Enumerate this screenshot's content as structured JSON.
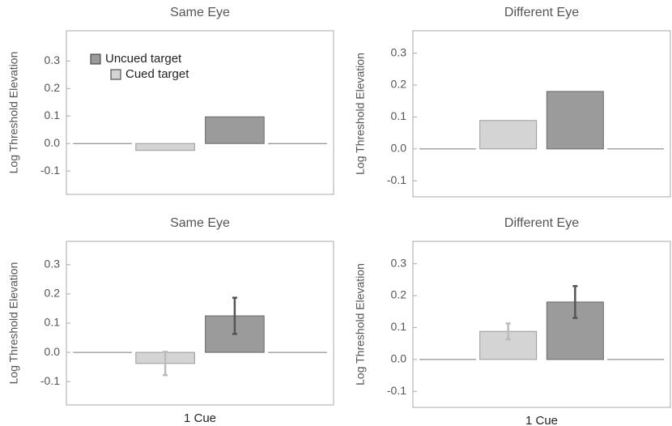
{
  "chart_data": [
    {
      "type": "bar",
      "title": "Same Eye",
      "y_label": "Log Threshold Elevation",
      "categories": [
        null
      ],
      "legend": "upper left",
      "ylim": [
        -0.185,
        0.41
      ],
      "yticks": [
        -0.1,
        {
          "value": 0,
          "label": "0.0"
        },
        0.1,
        0.2,
        0.3
      ],
      "series": [
        {
          "name": "Uncued target",
          "color": "#9b9b9b",
          "values": [
            0.097
          ]
        },
        {
          "name": "Cued target",
          "color": "#d4d4d4",
          "values": [
            -0.025
          ]
        }
      ]
    },
    {
      "type": "bar",
      "title": "Different Eye",
      "y_label": "Log Threshold Elevation",
      "categories": [
        null
      ],
      "ylim": [
        -0.15,
        0.37
      ],
      "yticks": [
        -0.1,
        {
          "value": 0,
          "label": "0.0"
        },
        0.1,
        0.2,
        0.3
      ],
      "series": [
        {
          "color": "#9b9b9b",
          "values": [
            0.18
          ]
        },
        {
          "color": "#d4d4d4",
          "values": [
            0.089
          ]
        }
      ]
    },
    {
      "type": "bar",
      "title": "Same Eye",
      "y_label": "Log Threshold Elevation",
      "categories": [
        "1 Cue"
      ],
      "ylim": [
        -0.18,
        0.38
      ],
      "yticks": [
        -0.1,
        {
          "value": 0,
          "label": "0.0"
        },
        0.1,
        0.2,
        0.3
      ],
      "series": [
        {
          "color": "#9b9b9b",
          "error_color": "#555555",
          "values": [
            0.125
          ],
          "errors": [
            0.062
          ]
        },
        {
          "color": "#d4d4d4",
          "error_color": "#bbbbbb",
          "values": [
            -0.038
          ],
          "errors": [
            0.04
          ]
        }
      ]
    },
    {
      "type": "bar",
      "title": "Different Eye",
      "y_label": "Log Threshold Elevation",
      "categories": [
        "1 Cue"
      ],
      "ylim": [
        -0.15,
        0.37
      ],
      "yticks": [
        -0.1,
        {
          "value": 0,
          "label": "0.0"
        },
        0.1,
        0.2,
        0.3
      ],
      "series": [
        {
          "color": "#9b9b9b",
          "error_color": "#555555",
          "values": [
            0.18
          ],
          "errors": [
            0.05
          ]
        },
        {
          "color": "#d4d4d4",
          "error_color": "#bbbbbb",
          "values": [
            0.088
          ],
          "errors": [
            0.025
          ]
        }
      ]
    }
  ]
}
